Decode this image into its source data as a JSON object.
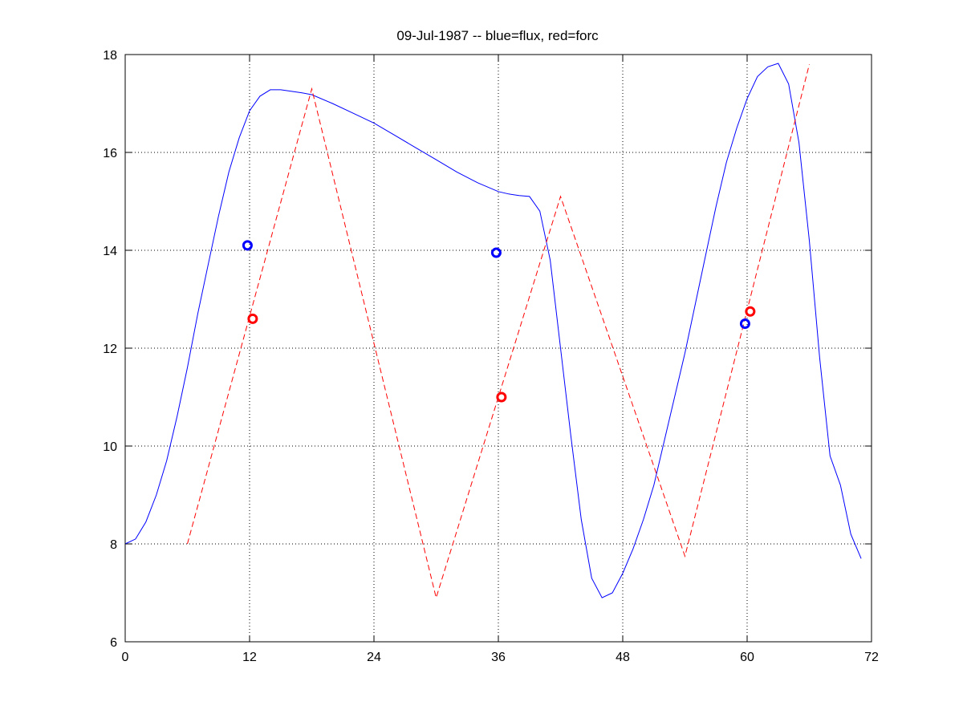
{
  "chart_data": {
    "type": "line",
    "title": "09-Jul-1987 -- blue=flux, red=forc",
    "xlabel": "",
    "ylabel": "",
    "xlim": [
      0,
      72
    ],
    "ylim": [
      6,
      18
    ],
    "xticks": [
      "0",
      "12",
      "24",
      "36",
      "48",
      "60",
      "72"
    ],
    "yticks": [
      "6",
      "8",
      "10",
      "12",
      "14",
      "16",
      "18"
    ],
    "grid": true,
    "colors": {
      "flux": "#0000ff",
      "forc": "#ff0000",
      "grid": "#000000"
    },
    "series": [
      {
        "color": "#0000ff",
        "style": "solid",
        "x": [
          0,
          1,
          2,
          3,
          4,
          5,
          6,
          7,
          8,
          9,
          10,
          11,
          12,
          13,
          14,
          15,
          16,
          17,
          18,
          20,
          22,
          24,
          26,
          28,
          30,
          32,
          34,
          36,
          37,
          38,
          39,
          40,
          41,
          42,
          43,
          44,
          45,
          46,
          47,
          48,
          49,
          50,
          51,
          52,
          53,
          54,
          55,
          56,
          57,
          58,
          59,
          60,
          61,
          62,
          63,
          64,
          65,
          66,
          67,
          68,
          69,
          70,
          71
        ],
        "y": [
          8.0,
          8.1,
          8.45,
          9.0,
          9.7,
          10.6,
          11.6,
          12.7,
          13.7,
          14.7,
          15.6,
          16.3,
          16.85,
          17.15,
          17.28,
          17.28,
          17.25,
          17.22,
          17.18,
          17.0,
          16.8,
          16.6,
          16.35,
          16.1,
          15.85,
          15.6,
          15.38,
          15.2,
          15.15,
          15.12,
          15.1,
          14.8,
          13.8,
          12.0,
          10.2,
          8.5,
          7.3,
          6.9,
          7.0,
          7.4,
          7.9,
          8.5,
          9.2,
          10.1,
          11.0,
          11.9,
          12.9,
          13.9,
          14.9,
          15.8,
          16.5,
          17.1,
          17.55,
          17.75,
          17.82,
          17.4,
          16.2,
          14.2,
          11.8,
          9.8,
          9.2,
          8.2,
          7.7
        ]
      },
      {
        "color": "#ff0000",
        "style": "dashed",
        "x": [
          6,
          18,
          30,
          42,
          54,
          66
        ],
        "y": [
          8.0,
          17.3,
          6.9,
          15.1,
          7.75,
          17.8
        ]
      }
    ],
    "markers": [
      {
        "color": "#0000ff",
        "x": 11.8,
        "y": 14.1
      },
      {
        "color": "#0000ff",
        "x": 35.8,
        "y": 13.95
      },
      {
        "color": "#0000ff",
        "x": 59.8,
        "y": 12.5
      },
      {
        "color": "#ff0000",
        "x": 12.3,
        "y": 12.6
      },
      {
        "color": "#ff0000",
        "x": 36.3,
        "y": 11.0
      },
      {
        "color": "#ff0000",
        "x": 60.3,
        "y": 12.75
      }
    ]
  }
}
